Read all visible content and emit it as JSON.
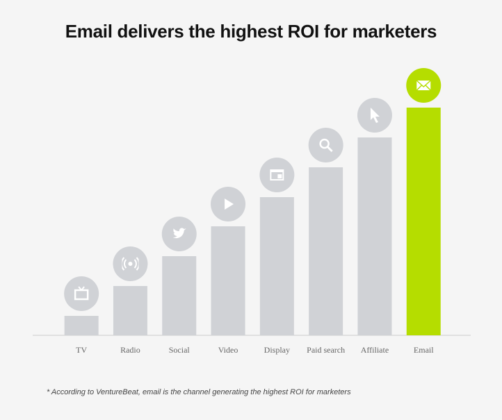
{
  "chart_data": {
    "type": "bar",
    "title": "Email delivers the highest ROI for marketers",
    "categories": [
      "TV",
      "Radio",
      "Social",
      "Video",
      "Display",
      "Paid search",
      "Affiliate",
      "Email"
    ],
    "values": [
      28,
      71,
      114,
      157,
      199,
      242,
      285,
      328
    ],
    "colors": [
      "#d0d2d6",
      "#d0d2d6",
      "#d0d2d6",
      "#d0d2d6",
      "#d0d2d6",
      "#d0d2d6",
      "#d0d2d6",
      "#b5dd00"
    ],
    "footnote": "* According to VentureBeat, email is the channel generating the highest ROI for marketers"
  }
}
